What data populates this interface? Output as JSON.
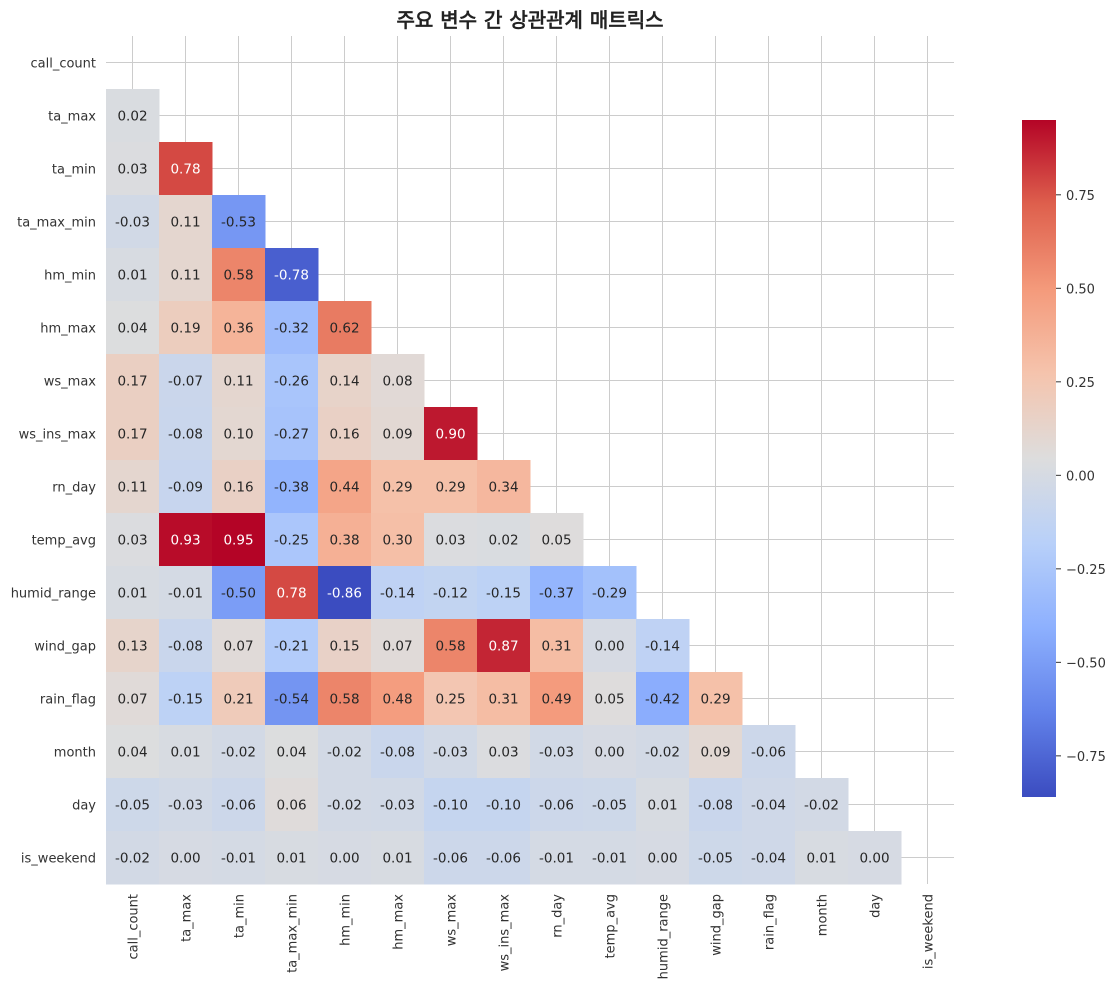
{
  "chart_data": {
    "type": "heatmap",
    "title": "주요 변수 간 상관관계 매트릭스",
    "variables": [
      "call_count",
      "ta_max",
      "ta_min",
      "ta_max_min",
      "hm_min",
      "hm_max",
      "ws_max",
      "ws_ins_max",
      "rn_day",
      "temp_avg",
      "humid_range",
      "wind_gap",
      "rain_flag",
      "month",
      "day",
      "is_weekend"
    ],
    "mask": "upper-triangle-including-diagonal",
    "lower_triangle_values": [
      [],
      [
        0.02
      ],
      [
        0.03,
        0.78
      ],
      [
        -0.03,
        0.11,
        -0.53
      ],
      [
        0.01,
        0.11,
        0.58,
        -0.78
      ],
      [
        0.04,
        0.19,
        0.36,
        -0.32,
        0.62
      ],
      [
        0.17,
        -0.07,
        0.11,
        -0.26,
        0.14,
        0.08
      ],
      [
        0.17,
        -0.08,
        0.1,
        -0.27,
        0.16,
        0.09,
        0.9
      ],
      [
        0.11,
        -0.09,
        0.16,
        -0.38,
        0.44,
        0.29,
        0.29,
        0.34
      ],
      [
        0.03,
        0.93,
        0.95,
        -0.25,
        0.38,
        0.3,
        0.03,
        0.02,
        0.05
      ],
      [
        0.01,
        -0.01,
        -0.5,
        0.78,
        -0.86,
        -0.14,
        -0.12,
        -0.15,
        -0.37,
        -0.29
      ],
      [
        0.13,
        -0.08,
        0.07,
        -0.21,
        0.15,
        0.07,
        0.58,
        0.87,
        0.31,
        0.0,
        -0.14
      ],
      [
        0.07,
        -0.15,
        0.21,
        -0.54,
        0.58,
        0.48,
        0.25,
        0.31,
        0.49,
        0.05,
        -0.42,
        0.29
      ],
      [
        0.04,
        0.01,
        -0.02,
        0.04,
        -0.02,
        -0.08,
        -0.03,
        0.03,
        -0.03,
        -0.0,
        -0.02,
        0.09,
        -0.06
      ],
      [
        -0.05,
        -0.03,
        -0.06,
        0.06,
        -0.02,
        -0.03,
        -0.1,
        -0.1,
        -0.06,
        -0.05,
        0.01,
        -0.08,
        -0.04,
        -0.02
      ],
      [
        -0.02,
        -0.0,
        -0.01,
        0.01,
        0.0,
        0.01,
        -0.06,
        -0.06,
        -0.01,
        -0.01,
        0.0,
        -0.05,
        -0.04,
        0.01,
        -0.0
      ]
    ],
    "value_format": "0.00",
    "colormap": "coolwarm",
    "colorbar": {
      "range": [
        -0.86,
        0.95
      ],
      "ticks": [
        -0.75,
        -0.5,
        -0.25,
        0.0,
        0.25,
        0.5,
        0.75
      ],
      "tick_labels": [
        "−0.75",
        "−0.50",
        "−0.25",
        "0.00",
        "0.25",
        "0.50",
        "0.75"
      ]
    },
    "grid": true
  }
}
